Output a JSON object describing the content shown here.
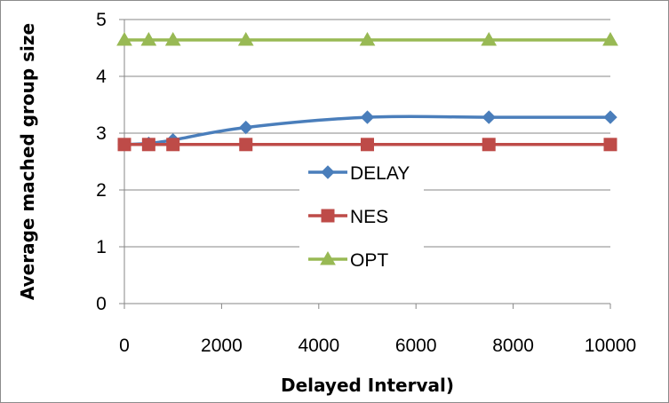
{
  "chart_data": {
    "type": "line",
    "title": "",
    "xlabel": "Delayed Interval)",
    "ylabel": "Average mached group size",
    "xlim": [
      0,
      10000
    ],
    "ylim": [
      0,
      5
    ],
    "xticks": [
      0,
      2000,
      4000,
      6000,
      8000,
      10000
    ],
    "yticks": [
      0,
      1,
      2,
      3,
      4,
      5
    ],
    "grid": "horizontal",
    "legend": "center",
    "series": [
      {
        "name": "DELAY",
        "color": "#4a7ebb",
        "marker": "diamond",
        "smooth": true,
        "x": [
          0,
          500,
          1000,
          2500,
          5000,
          7500,
          10000
        ],
        "y": [
          2.8,
          2.82,
          2.88,
          3.1,
          3.28,
          3.28,
          3.28
        ]
      },
      {
        "name": "NES",
        "color": "#be4b48",
        "marker": "square",
        "smooth": false,
        "x": [
          0,
          500,
          1000,
          2500,
          5000,
          7500,
          10000
        ],
        "y": [
          2.8,
          2.8,
          2.8,
          2.8,
          2.8,
          2.8,
          2.8
        ]
      },
      {
        "name": "OPT",
        "color": "#98b954",
        "marker": "triangle",
        "smooth": false,
        "x": [
          0,
          500,
          1000,
          2500,
          5000,
          7500,
          10000
        ],
        "y": [
          4.64,
          4.64,
          4.64,
          4.64,
          4.64,
          4.64,
          4.64
        ]
      }
    ]
  }
}
